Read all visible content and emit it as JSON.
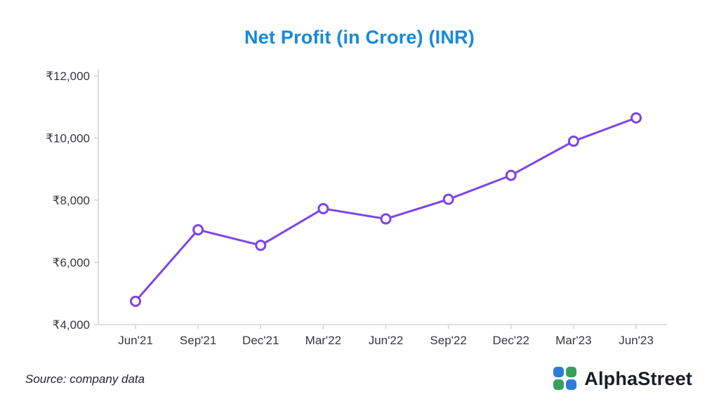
{
  "title": "Net Profit (in Crore) (INR)",
  "source_note": "Source: company data",
  "brand": {
    "name": "AlphaStreet"
  },
  "colors": {
    "title": "#1789d8",
    "line": "#7c45e6",
    "marker_fill": "#ffffff",
    "axis": "#cfd4da",
    "tick_text": "#33383f"
  },
  "chart_data": {
    "type": "line",
    "title": "Net Profit (in Crore) (INR)",
    "categories": [
      "Jun'21",
      "Sep'21",
      "Dec'21",
      "Mar'22",
      "Jun'22",
      "Sep'22",
      "Dec'22",
      "Mar'23",
      "Jun'23"
    ],
    "values": [
      4750,
      7050,
      6550,
      7730,
      7400,
      8030,
      8800,
      9900,
      10650
    ],
    "xlabel": "",
    "ylabel": "",
    "ylim": [
      4000,
      12000
    ],
    "y_ticks": [
      4000,
      6000,
      8000,
      10000,
      12000
    ],
    "y_tick_prefix": "₹",
    "grid": false,
    "legend": false
  }
}
